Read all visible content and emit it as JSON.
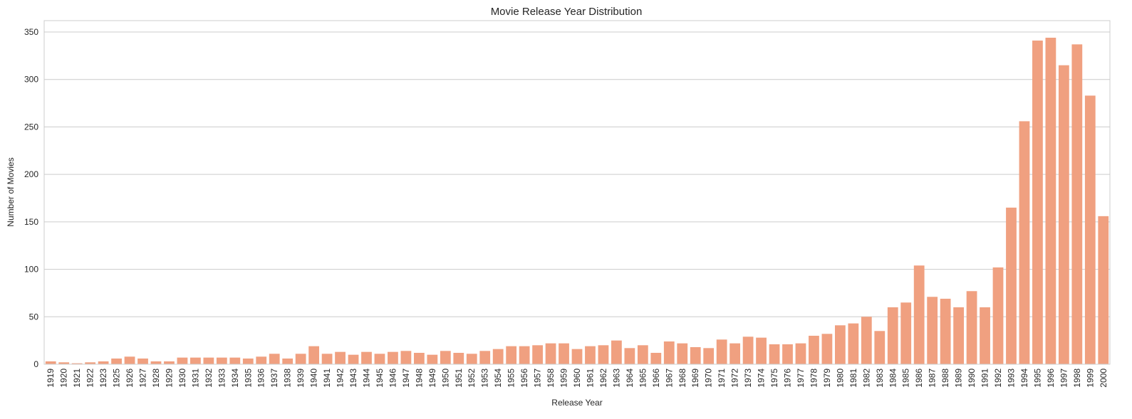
{
  "chart_data": {
    "type": "bar",
    "title": "Movie Release Year Distribution",
    "xlabel": "Release Year",
    "ylabel": "Number of Movies",
    "ylim": [
      0,
      362
    ],
    "yticks": [
      0,
      50,
      100,
      150,
      200,
      250,
      300,
      350
    ],
    "grid": "horizontal",
    "bar_color": "#f0a080",
    "categories": [
      "1919",
      "1920",
      "1921",
      "1922",
      "1923",
      "1925",
      "1926",
      "1927",
      "1928",
      "1929",
      "1930",
      "1931",
      "1932",
      "1933",
      "1934",
      "1935",
      "1936",
      "1937",
      "1938",
      "1939",
      "1940",
      "1941",
      "1942",
      "1943",
      "1944",
      "1945",
      "1946",
      "1947",
      "1948",
      "1949",
      "1950",
      "1951",
      "1952",
      "1953",
      "1954",
      "1955",
      "1956",
      "1957",
      "1958",
      "1959",
      "1960",
      "1961",
      "1962",
      "1963",
      "1964",
      "1965",
      "1966",
      "1967",
      "1968",
      "1969",
      "1970",
      "1971",
      "1972",
      "1973",
      "1974",
      "1975",
      "1976",
      "1977",
      "1978",
      "1979",
      "1980",
      "1981",
      "1982",
      "1983",
      "1984",
      "1985",
      "1986",
      "1987",
      "1988",
      "1989",
      "1990",
      "1991",
      "1992",
      "1993",
      "1994",
      "1995",
      "1996",
      "1997",
      "1998",
      "1999",
      "2000"
    ],
    "values": [
      3,
      2,
      1,
      2,
      3,
      6,
      8,
      6,
      3,
      3,
      7,
      7,
      7,
      7,
      7,
      6,
      8,
      11,
      6,
      11,
      19,
      11,
      13,
      10,
      13,
      11,
      13,
      14,
      12,
      10,
      14,
      12,
      11,
      14,
      16,
      19,
      19,
      20,
      22,
      22,
      16,
      19,
      20,
      25,
      17,
      20,
      12,
      24,
      22,
      18,
      17,
      26,
      22,
      29,
      28,
      21,
      21,
      22,
      30,
      32,
      41,
      43,
      50,
      35,
      60,
      65,
      104,
      71,
      69,
      60,
      77,
      60,
      102,
      165,
      256,
      341,
      344,
      315,
      337,
      283,
      156
    ]
  }
}
